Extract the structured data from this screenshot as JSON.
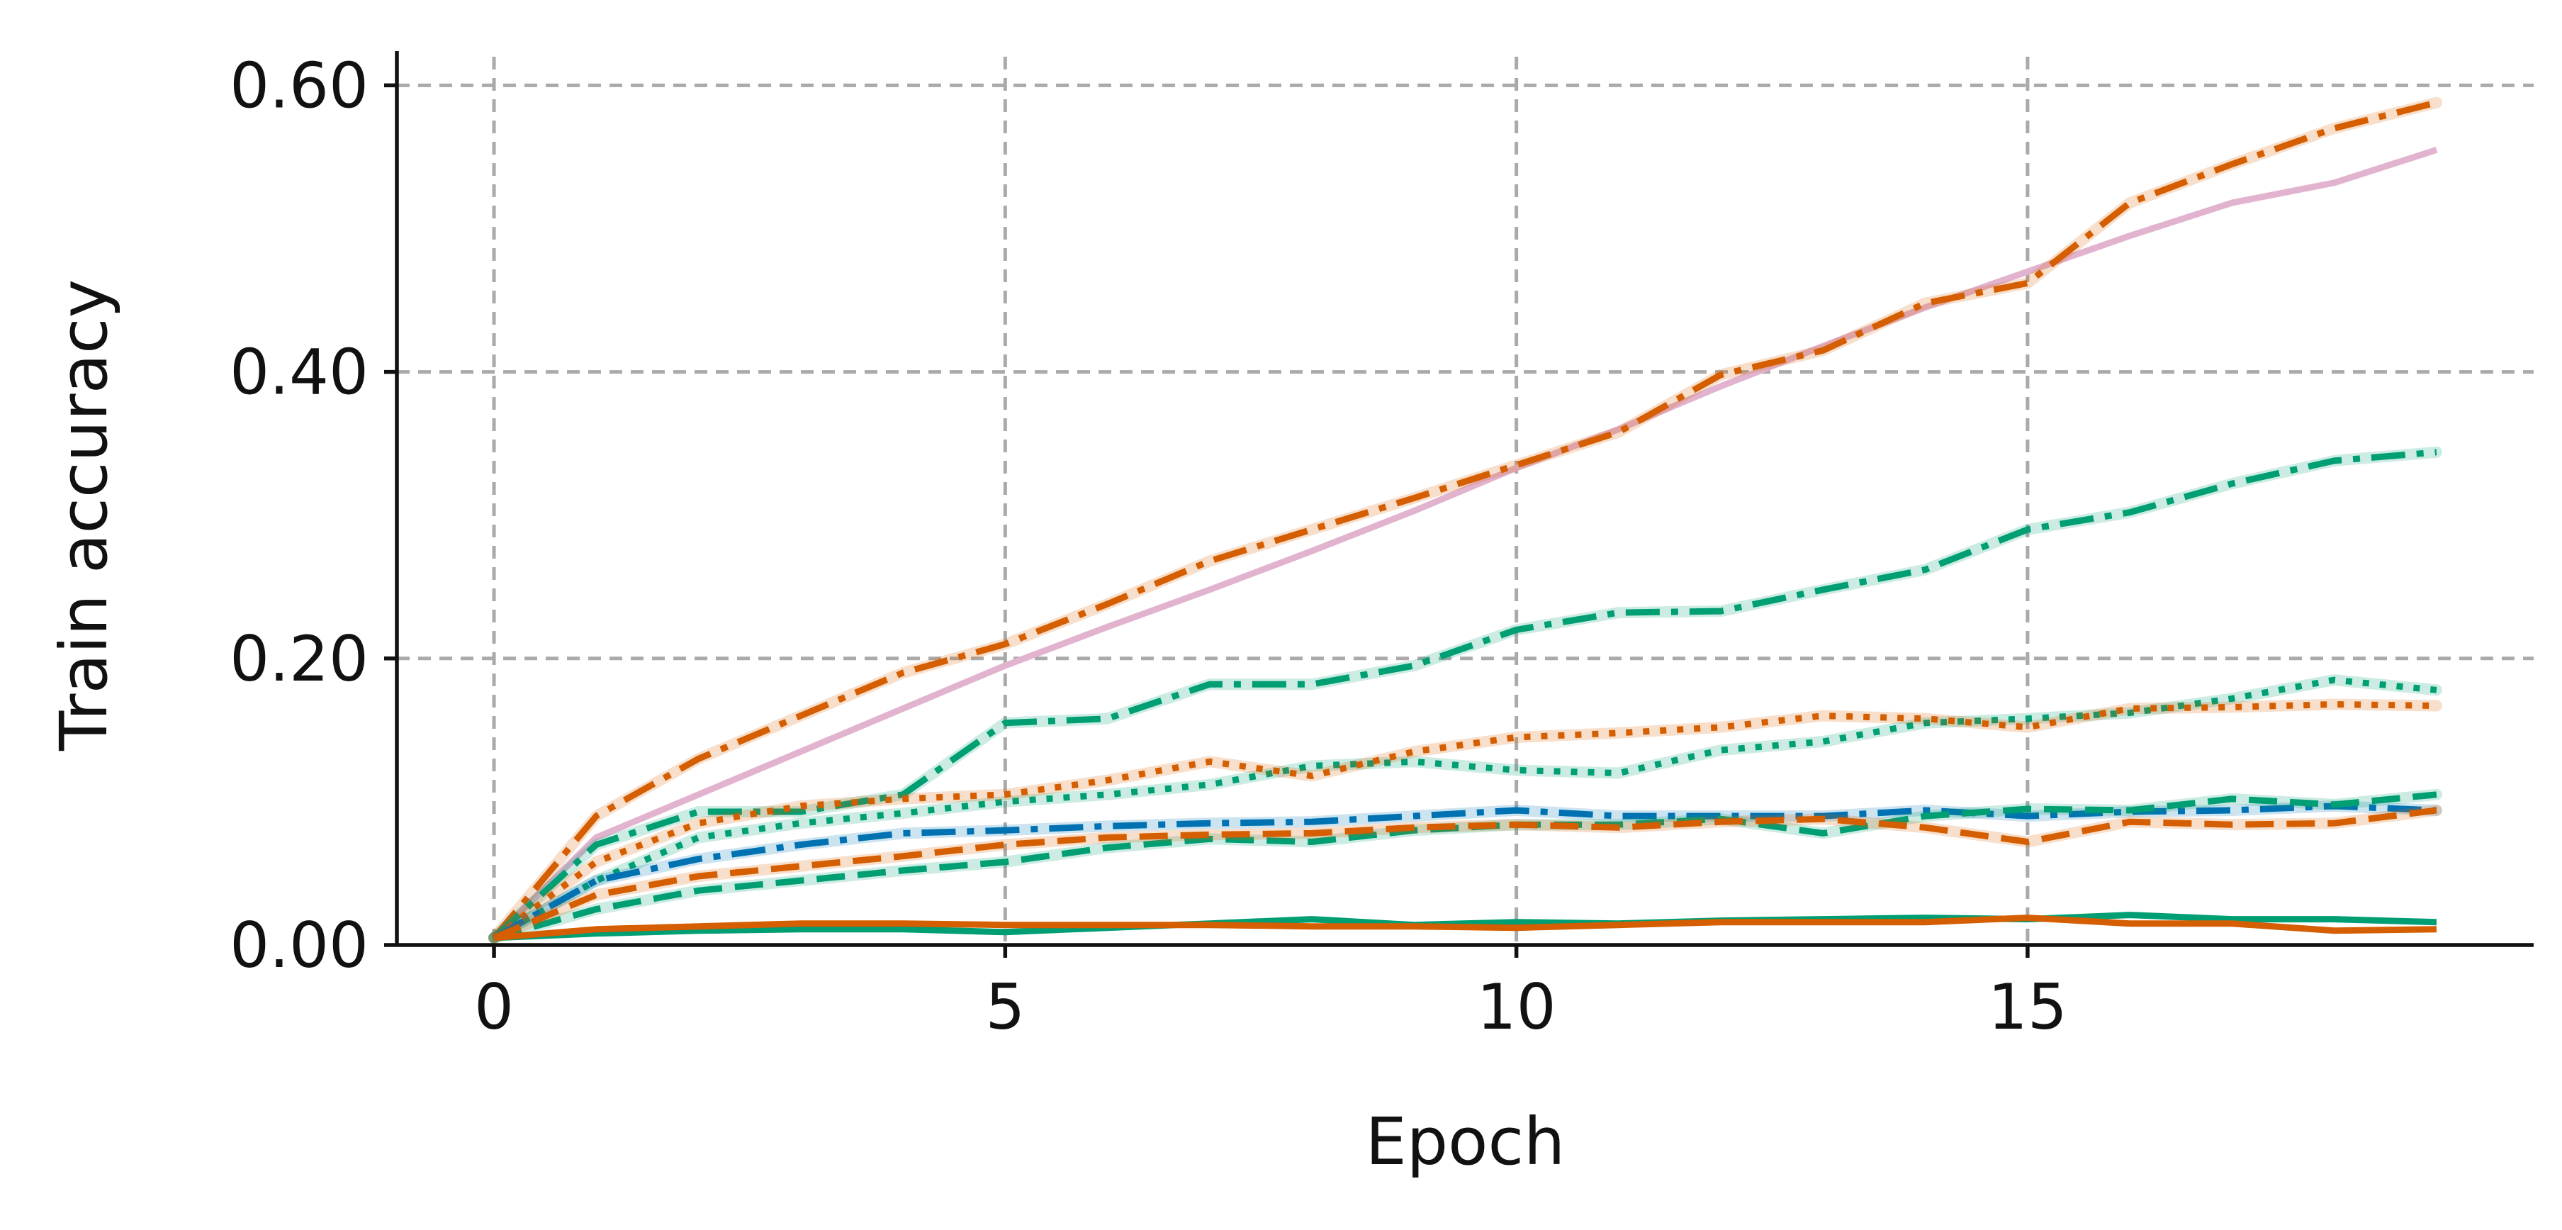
{
  "chart_data": {
    "type": "line",
    "xlabel": "Epoch",
    "ylabel": "Train accuracy",
    "xlim": [
      -0.95,
      19.95
    ],
    "ylim": [
      0.0,
      0.62
    ],
    "x_ticks": [
      0,
      5,
      10,
      15
    ],
    "x_tick_labels": [
      "0",
      "5",
      "10",
      "15"
    ],
    "y_ticks": [
      0.0,
      0.2,
      0.4,
      0.6
    ],
    "y_tick_labels": [
      "0.00",
      "0.20",
      "0.40",
      "0.60"
    ],
    "grid": true,
    "legend": "none",
    "x": [
      0,
      1,
      2,
      3,
      4,
      5,
      6,
      7,
      8,
      9,
      10,
      11,
      12,
      13,
      14,
      15,
      16,
      17,
      18,
      19
    ],
    "series": [
      {
        "color": "#e2b3cf",
        "dash": "solid",
        "halo": false,
        "values": [
          0.005,
          0.075,
          0.105,
          0.135,
          0.165,
          0.195,
          0.222,
          0.248,
          0.275,
          0.303,
          0.333,
          0.36,
          0.39,
          0.418,
          0.445,
          0.47,
          0.495,
          0.518,
          0.532,
          0.555
        ]
      },
      {
        "color": "#d55e00",
        "dash": "dashdot",
        "halo": true,
        "values": [
          0.005,
          0.09,
          0.13,
          0.16,
          0.19,
          0.21,
          0.238,
          0.268,
          0.29,
          0.312,
          0.335,
          0.358,
          0.398,
          0.415,
          0.448,
          0.462,
          0.518,
          0.545,
          0.57,
          0.588
        ]
      },
      {
        "color": "#009e73",
        "dash": "dashdot",
        "halo": true,
        "values": [
          0.005,
          0.07,
          0.093,
          0.093,
          0.105,
          0.155,
          0.158,
          0.182,
          0.182,
          0.195,
          0.22,
          0.232,
          0.233,
          0.248,
          0.262,
          0.29,
          0.302,
          0.322,
          0.338,
          0.344
        ]
      },
      {
        "color": "#009e73",
        "dash": "dot",
        "halo": true,
        "values": [
          0.005,
          0.045,
          0.075,
          0.085,
          0.092,
          0.1,
          0.105,
          0.112,
          0.125,
          0.128,
          0.122,
          0.12,
          0.136,
          0.142,
          0.155,
          0.158,
          0.162,
          0.172,
          0.185,
          0.178
        ]
      },
      {
        "color": "#d55e00",
        "dash": "dot",
        "halo": true,
        "values": [
          0.005,
          0.058,
          0.085,
          0.097,
          0.102,
          0.105,
          0.115,
          0.128,
          0.118,
          0.135,
          0.145,
          0.148,
          0.152,
          0.16,
          0.158,
          0.152,
          0.165,
          0.166,
          0.168,
          0.167
        ]
      },
      {
        "color": "#0072b2",
        "dash": "dashdot",
        "halo": true,
        "values": [
          0.005,
          0.045,
          0.06,
          0.07,
          0.078,
          0.08,
          0.083,
          0.085,
          0.086,
          0.09,
          0.094,
          0.09,
          0.09,
          0.09,
          0.094,
          0.09,
          0.093,
          0.094,
          0.097,
          0.094
        ]
      },
      {
        "color": "#009e73",
        "dash": "dash",
        "halo": true,
        "values": [
          0.005,
          0.025,
          0.038,
          0.045,
          0.052,
          0.058,
          0.068,
          0.074,
          0.072,
          0.08,
          0.084,
          0.084,
          0.088,
          0.078,
          0.09,
          0.095,
          0.094,
          0.102,
          0.098,
          0.105
        ]
      },
      {
        "color": "#d55e00",
        "dash": "dash",
        "halo": true,
        "values": [
          0.005,
          0.035,
          0.048,
          0.055,
          0.062,
          0.07,
          0.075,
          0.077,
          0.078,
          0.082,
          0.084,
          0.082,
          0.086,
          0.088,
          0.082,
          0.072,
          0.086,
          0.084,
          0.085,
          0.094
        ]
      },
      {
        "color": "#009e73",
        "dash": "solid",
        "halo": false,
        "values": [
          0.005,
          0.008,
          0.01,
          0.011,
          0.011,
          0.009,
          0.012,
          0.015,
          0.018,
          0.014,
          0.016,
          0.015,
          0.017,
          0.018,
          0.019,
          0.018,
          0.021,
          0.018,
          0.018,
          0.016
        ]
      },
      {
        "color": "#d55e00",
        "dash": "solid",
        "halo": false,
        "values": [
          0.005,
          0.011,
          0.013,
          0.015,
          0.015,
          0.014,
          0.014,
          0.014,
          0.013,
          0.013,
          0.012,
          0.014,
          0.016,
          0.016,
          0.016,
          0.019,
          0.015,
          0.015,
          0.01,
          0.011
        ]
      }
    ]
  }
}
